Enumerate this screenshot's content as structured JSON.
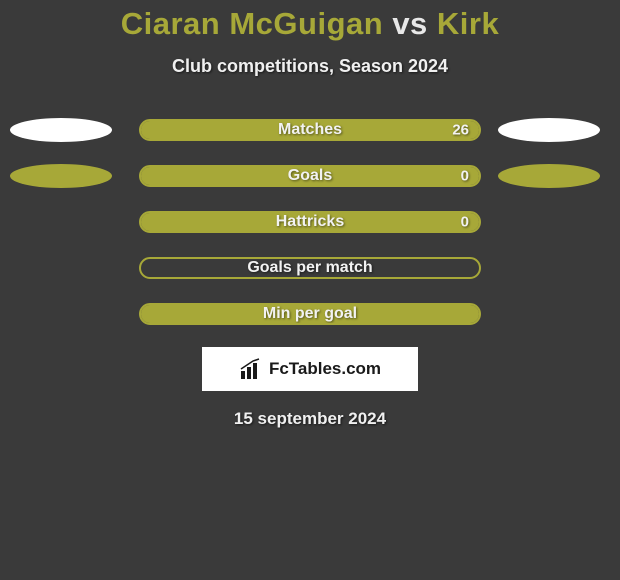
{
  "header": {
    "player1": "Ciaran McGuigan",
    "vs": "vs",
    "player2": "Kirk",
    "subtitle": "Club competitions, Season 2024"
  },
  "chart": {
    "bar_border_color": "#a7a838",
    "bar_fill_color": "#a7a838",
    "ellipse_white": "#ffffff",
    "ellipse_olive": "#a7a838",
    "rows": [
      {
        "label": "Matches",
        "value": "26",
        "fill_side": "right",
        "fill_pct": 100,
        "left_ellipse": "#ffffff",
        "right_ellipse": "#ffffff"
      },
      {
        "label": "Goals",
        "value": "0",
        "fill_side": "left",
        "fill_pct": 100,
        "left_ellipse": "#a7a838",
        "right_ellipse": "#a7a838"
      },
      {
        "label": "Hattricks",
        "value": "0",
        "fill_side": "right",
        "fill_pct": 100,
        "left_ellipse": null,
        "right_ellipse": null
      },
      {
        "label": "Goals per match",
        "value": null,
        "fill_side": "none",
        "fill_pct": 0,
        "left_ellipse": null,
        "right_ellipse": null
      },
      {
        "label": "Min per goal",
        "value": null,
        "fill_side": "left",
        "fill_pct": 100,
        "left_ellipse": null,
        "right_ellipse": null
      }
    ]
  },
  "footer": {
    "logo_text": "FcTables.com",
    "date": "15 september 2024"
  },
  "colors": {
    "background": "#3a3a3a",
    "accent": "#a7a838",
    "text_light": "#f0f0f0",
    "logo_bg": "#ffffff",
    "logo_text": "#1a1a1a"
  }
}
